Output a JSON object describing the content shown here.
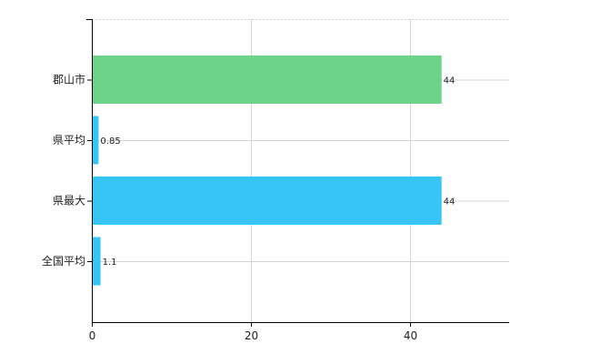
{
  "chart_data": {
    "type": "bar",
    "orientation": "horizontal",
    "categories": [
      "郡山市",
      "県平均",
      "県最大",
      "全国平均"
    ],
    "values": [
      44,
      0.85,
      44,
      1.1
    ],
    "value_labels": [
      "44",
      "0.85",
      "44",
      "1.1"
    ],
    "bar_colors": [
      "#6cd389",
      "#36c5f5",
      "#36c5f5",
      "#36c5f5"
    ],
    "xlim": [
      0,
      52.5
    ],
    "xticks": [
      0,
      20,
      40
    ],
    "xtick_labels": [
      "0",
      "20",
      "40"
    ],
    "grid": true,
    "legend": "none"
  }
}
